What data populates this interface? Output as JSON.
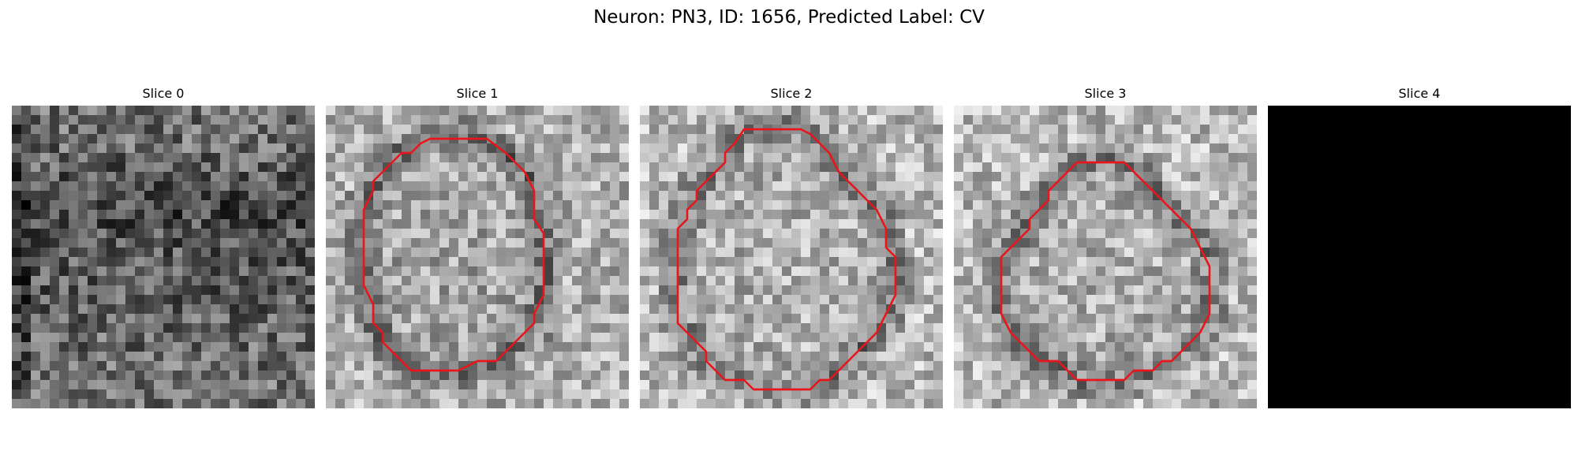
{
  "figure": {
    "title": "Neuron: PN3, ID: 1656, Predicted Label: CV"
  },
  "grid_size": 32,
  "contour_color": "#e8161b",
  "panels": [
    {
      "title": "Slice 0",
      "type": "noise",
      "mean_gray": 110,
      "has_contour": false
    },
    {
      "title": "Slice 1",
      "type": "ring",
      "mean_gray": 140,
      "has_contour": true,
      "contour": [
        [
          11,
          3.5
        ],
        [
          17,
          3.5
        ],
        [
          19,
          5
        ],
        [
          21,
          7
        ],
        [
          22,
          9
        ],
        [
          22,
          12
        ],
        [
          23,
          13.5
        ],
        [
          23,
          20
        ],
        [
          22,
          22
        ],
        [
          22,
          23
        ],
        [
          21,
          24
        ],
        [
          20,
          25
        ],
        [
          19,
          26
        ],
        [
          18,
          27
        ],
        [
          16,
          27
        ],
        [
          14,
          28
        ],
        [
          13,
          28
        ],
        [
          11,
          28
        ],
        [
          9,
          28
        ],
        [
          8,
          27
        ],
        [
          7,
          26
        ],
        [
          6,
          25
        ],
        [
          6,
          24
        ],
        [
          5,
          23
        ],
        [
          5,
          21
        ],
        [
          4,
          19
        ],
        [
          4,
          14
        ],
        [
          4,
          11
        ],
        [
          5,
          9
        ],
        [
          5,
          8
        ],
        [
          6,
          7
        ],
        [
          7,
          6
        ],
        [
          8,
          5
        ],
        [
          9,
          5
        ],
        [
          10,
          4
        ]
      ]
    },
    {
      "title": "Slice 2",
      "type": "ring",
      "mean_gray": 150,
      "has_contour": true,
      "contour": [
        [
          11,
          2.5
        ],
        [
          17,
          2.5
        ],
        [
          18,
          3
        ],
        [
          19,
          4
        ],
        [
          20,
          5
        ],
        [
          21,
          7
        ],
        [
          22,
          8
        ],
        [
          23,
          9
        ],
        [
          24,
          10
        ],
        [
          25,
          11
        ],
        [
          26,
          13
        ],
        [
          26,
          15
        ],
        [
          27,
          16
        ],
        [
          27,
          20
        ],
        [
          26,
          22
        ],
        [
          25,
          24
        ],
        [
          24,
          25
        ],
        [
          23,
          26
        ],
        [
          22,
          27
        ],
        [
          21,
          28
        ],
        [
          20,
          29
        ],
        [
          19,
          29
        ],
        [
          18,
          30
        ],
        [
          12,
          30
        ],
        [
          11,
          29
        ],
        [
          9,
          29
        ],
        [
          8,
          28
        ],
        [
          7,
          27
        ],
        [
          7,
          26
        ],
        [
          6,
          25
        ],
        [
          5,
          24
        ],
        [
          4,
          23
        ],
        [
          4,
          21
        ],
        [
          4,
          18
        ],
        [
          4,
          13
        ],
        [
          5,
          12
        ],
        [
          5,
          11
        ],
        [
          6,
          10
        ],
        [
          6,
          9
        ],
        [
          7,
          8
        ],
        [
          8,
          7
        ],
        [
          9,
          6
        ],
        [
          9,
          5
        ],
        [
          10,
          4
        ]
      ]
    },
    {
      "title": "Slice 3",
      "type": "ring",
      "mean_gray": 150,
      "has_contour": true,
      "contour": [
        [
          13,
          6
        ],
        [
          18,
          6
        ],
        [
          19,
          7
        ],
        [
          20,
          8
        ],
        [
          21,
          9
        ],
        [
          22,
          10
        ],
        [
          23,
          11
        ],
        [
          24,
          12
        ],
        [
          25,
          13
        ],
        [
          26,
          15
        ],
        [
          27,
          17
        ],
        [
          27,
          22
        ],
        [
          26,
          24
        ],
        [
          25,
          25
        ],
        [
          24,
          26
        ],
        [
          23,
          27
        ],
        [
          22,
          27
        ],
        [
          21,
          28
        ],
        [
          19,
          28
        ],
        [
          18,
          29
        ],
        [
          15,
          29
        ],
        [
          13,
          29
        ],
        [
          12,
          28
        ],
        [
          11,
          27
        ],
        [
          9,
          27
        ],
        [
          8,
          26
        ],
        [
          7,
          25
        ],
        [
          6,
          24
        ],
        [
          5,
          22
        ],
        [
          5,
          19
        ],
        [
          5,
          16
        ],
        [
          6,
          15
        ],
        [
          7,
          14
        ],
        [
          8,
          13
        ],
        [
          8,
          12
        ],
        [
          9,
          11
        ],
        [
          10,
          10
        ],
        [
          10,
          9
        ],
        [
          11,
          8
        ],
        [
          12,
          7
        ]
      ]
    },
    {
      "title": "Slice 4",
      "type": "black",
      "mean_gray": 0,
      "has_contour": false
    }
  ]
}
